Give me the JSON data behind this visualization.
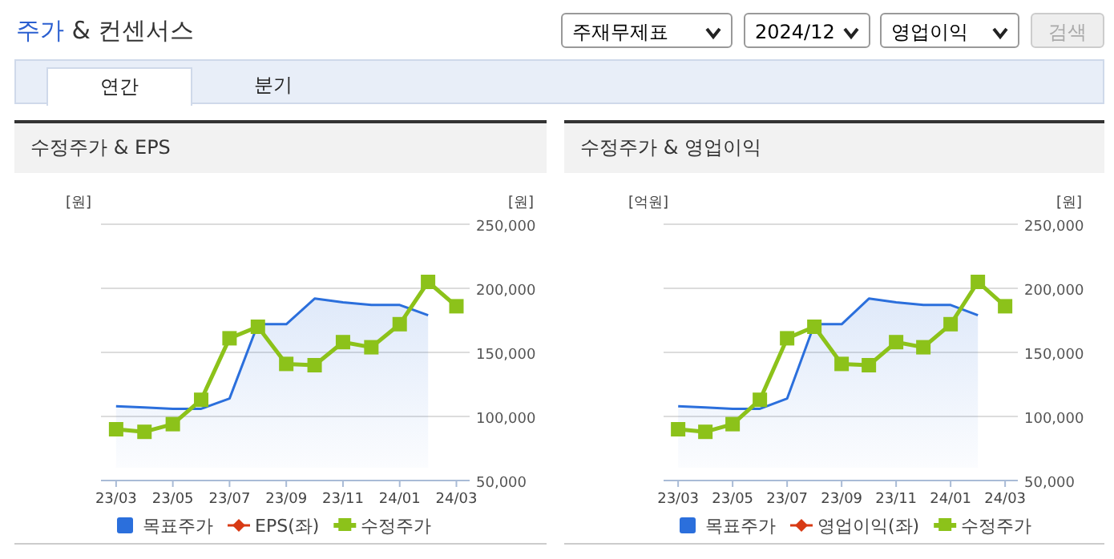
{
  "chart_data": [
    {
      "type": "other",
      "title": "주가 & 컨센서스",
      "annotations": [
        "주재무제표",
        "2024/12",
        "영업이익",
        "검색",
        "연간",
        "분기"
      ]
    },
    {
      "type": "line",
      "title": "수정주가 & EPS",
      "ylabel": "[원]",
      "y2label": "[원]",
      "x": [
        "2023-03",
        "2023-04",
        "2023-05",
        "2023-06",
        "2023-07",
        "2023-08",
        "2023-09",
        "2023-10",
        "2023-11",
        "2023-12",
        "2024-01",
        "2024-02",
        "2024-03"
      ],
      "xlim": [
        "2023-02-15",
        "2024-03-15"
      ],
      "xticks": [
        {
          "value": "2023-03",
          "label": "23/03"
        },
        {
          "value": "2023-05",
          "label": "23/05"
        },
        {
          "value": "2023-07",
          "label": "23/07"
        },
        {
          "value": "2023-09",
          "label": "23/09"
        },
        {
          "value": "2023-11",
          "label": "23/11"
        },
        {
          "value": "2024-01",
          "label": "24/01"
        },
        {
          "value": "2024-03",
          "label": "24/03"
        }
      ],
      "y2lim": [
        50000,
        250000
      ],
      "y2ticks": [
        {
          "value": 50000,
          "label": "50,000"
        },
        {
          "value": 100000,
          "label": "100,000"
        },
        {
          "value": 150000,
          "label": "150,000"
        },
        {
          "value": 200000,
          "label": "200,000"
        },
        {
          "value": 250000,
          "label": "250,000"
        }
      ],
      "grid": "y",
      "legend": "bottom",
      "series": [
        {
          "name": "목표주가",
          "type": "area",
          "color": "#2b6fdc",
          "marker": "none",
          "axis": "y2",
          "values": [
            108000,
            107000,
            106000,
            106000,
            114000,
            172000,
            172000,
            192000,
            189000,
            187000,
            187000,
            179000,
            null
          ]
        },
        {
          "name": "EPS(좌)",
          "type": "line",
          "color": "#d83a14",
          "marker": "diamond",
          "axis": "y",
          "values": [
            null,
            null,
            null,
            null,
            null,
            null,
            null,
            null,
            null,
            null,
            null,
            null,
            null
          ]
        },
        {
          "name": "수정주가",
          "type": "line",
          "color": "#8cc21a",
          "marker": "square",
          "axis": "y2",
          "values": [
            90000,
            88000,
            94000,
            113000,
            161000,
            170000,
            141000,
            140000,
            158000,
            154000,
            172000,
            205000,
            186000
          ]
        }
      ]
    },
    {
      "type": "line",
      "title": "수정주가 & 영업이익",
      "ylabel": "[억원]",
      "y2label": "[원]",
      "x": [
        "2023-03",
        "2023-04",
        "2023-05",
        "2023-06",
        "2023-07",
        "2023-08",
        "2023-09",
        "2023-10",
        "2023-11",
        "2023-12",
        "2024-01",
        "2024-02",
        "2024-03"
      ],
      "xlim": [
        "2023-02-15",
        "2024-03-15"
      ],
      "xticks": [
        {
          "value": "2023-03",
          "label": "23/03"
        },
        {
          "value": "2023-05",
          "label": "23/05"
        },
        {
          "value": "2023-07",
          "label": "23/07"
        },
        {
          "value": "2023-09",
          "label": "23/09"
        },
        {
          "value": "2023-11",
          "label": "23/11"
        },
        {
          "value": "2024-01",
          "label": "24/01"
        },
        {
          "value": "2024-03",
          "label": "24/03"
        }
      ],
      "y2lim": [
        50000,
        250000
      ],
      "y2ticks": [
        {
          "value": 50000,
          "label": "50,000"
        },
        {
          "value": 100000,
          "label": "100,000"
        },
        {
          "value": 150000,
          "label": "150,000"
        },
        {
          "value": 200000,
          "label": "200,000"
        },
        {
          "value": 250000,
          "label": "250,000"
        }
      ],
      "grid": "y",
      "legend": "bottom",
      "series": [
        {
          "name": "목표주가",
          "type": "area",
          "color": "#2b6fdc",
          "marker": "none",
          "axis": "y2",
          "values": [
            108000,
            107000,
            106000,
            106000,
            114000,
            172000,
            172000,
            192000,
            189000,
            187000,
            187000,
            179000,
            null
          ]
        },
        {
          "name": "영업이익(좌)",
          "type": "line",
          "color": "#d83a14",
          "marker": "diamond",
          "axis": "y",
          "values": [
            null,
            null,
            null,
            null,
            null,
            null,
            null,
            null,
            null,
            null,
            null,
            null,
            null
          ]
        },
        {
          "name": "수정주가",
          "type": "line",
          "color": "#8cc21a",
          "marker": "square",
          "axis": "y2",
          "values": [
            90000,
            88000,
            94000,
            113000,
            161000,
            170000,
            141000,
            140000,
            158000,
            154000,
            172000,
            205000,
            186000
          ]
        }
      ]
    }
  ]
}
